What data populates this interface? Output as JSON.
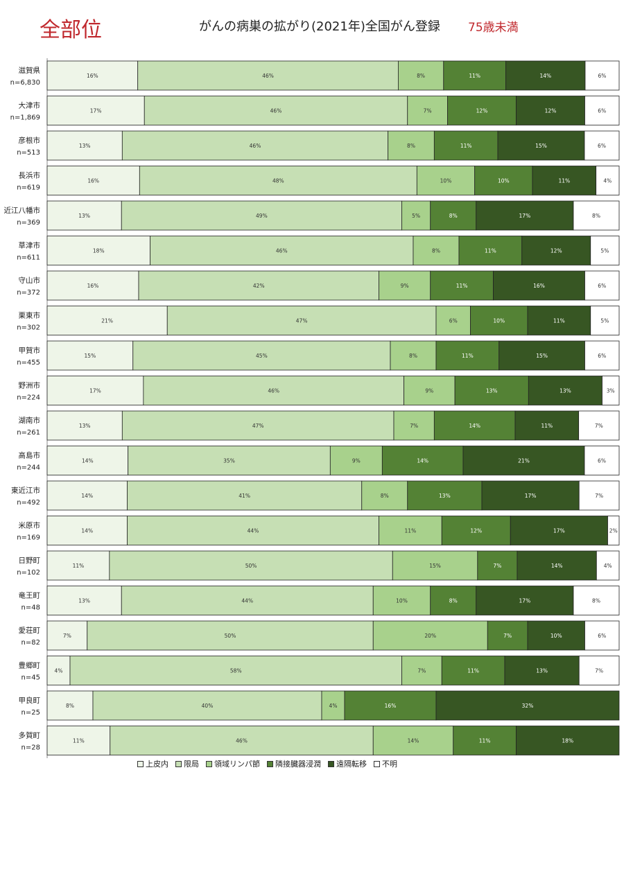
{
  "header": {
    "site_label": "全部位",
    "title": "がんの病巣の拡がり(2021年)全国がん登録",
    "age_group": "75歳未満"
  },
  "colors": [
    "#eef5e8",
    "#c6dfb4",
    "#a8d18c",
    "#548235",
    "#375623",
    "#ffffff"
  ],
  "chart_data": {
    "type": "bar",
    "orientation": "horizontal",
    "stacked": "percent",
    "grid": false,
    "legend_position": "bottom",
    "categories": [
      {
        "name": "滋賀県",
        "n": "n=6,830"
      },
      {
        "name": "大津市",
        "n": "n=1,869"
      },
      {
        "name": "彦根市",
        "n": "n=513"
      },
      {
        "name": "長浜市",
        "n": "n=619"
      },
      {
        "name": "近江八幡市",
        "n": "n=369"
      },
      {
        "name": "草津市",
        "n": "n=611"
      },
      {
        "name": "守山市",
        "n": "n=372"
      },
      {
        "name": "栗東市",
        "n": "n=302"
      },
      {
        "name": "甲賀市",
        "n": "n=455"
      },
      {
        "name": "野洲市",
        "n": "n=224"
      },
      {
        "name": "湖南市",
        "n": "n=261"
      },
      {
        "name": "高島市",
        "n": "n=244"
      },
      {
        "name": "東近江市",
        "n": "n=492"
      },
      {
        "name": "米原市",
        "n": "n=169"
      },
      {
        "name": "日野町",
        "n": "n=102"
      },
      {
        "name": "竜王町",
        "n": "n=48"
      },
      {
        "name": "愛荘町",
        "n": "n=82"
      },
      {
        "name": "豊郷町",
        "n": "n=45"
      },
      {
        "name": "甲良町",
        "n": "n=25"
      },
      {
        "name": "多賀町",
        "n": "n=28"
      }
    ],
    "series": [
      {
        "name": "上皮内",
        "values": [
          16,
          17,
          13,
          16,
          13,
          18,
          16,
          21,
          15,
          17,
          13,
          14,
          14,
          14,
          11,
          13,
          7,
          4,
          8,
          11
        ]
      },
      {
        "name": "限局",
        "values": [
          46,
          46,
          46,
          48,
          49,
          46,
          42,
          47,
          45,
          46,
          47,
          35,
          41,
          44,
          50,
          44,
          50,
          58,
          40,
          46
        ]
      },
      {
        "name": "領域リンパ節",
        "values": [
          8,
          7,
          8,
          10,
          5,
          8,
          9,
          6,
          8,
          9,
          7,
          9,
          8,
          11,
          15,
          10,
          20,
          7,
          4,
          14
        ]
      },
      {
        "name": "隣接臓器浸潤",
        "values": [
          11,
          12,
          11,
          10,
          8,
          11,
          11,
          10,
          11,
          13,
          14,
          14,
          13,
          12,
          7,
          8,
          7,
          11,
          16,
          11
        ]
      },
      {
        "name": "遠隔転移",
        "values": [
          14,
          12,
          15,
          11,
          17,
          12,
          16,
          11,
          15,
          13,
          11,
          21,
          17,
          17,
          14,
          17,
          10,
          13,
          32,
          18
        ]
      },
      {
        "name": "不明",
        "values": [
          6,
          6,
          6,
          4,
          8,
          5,
          6,
          5,
          6,
          3,
          7,
          6,
          7,
          2,
          4,
          8,
          6,
          7,
          0,
          0
        ]
      }
    ]
  }
}
